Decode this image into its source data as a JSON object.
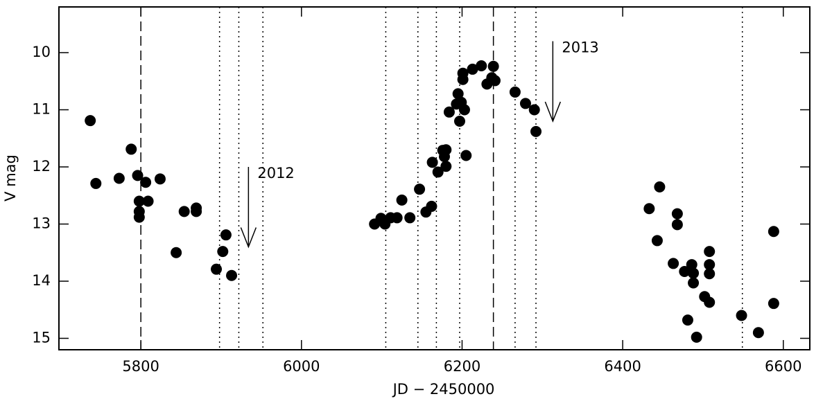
{
  "chart_data": {
    "type": "scatter",
    "xlabel": "JD − 2450000",
    "ylabel": "V mag",
    "xlim": [
      5698,
      6633
    ],
    "ylim": [
      9.2,
      15.2
    ],
    "invert_y": true,
    "xticks": [
      5800,
      6000,
      6200,
      6400,
      6600
    ],
    "yticks": [
      10,
      11,
      12,
      13,
      14,
      15
    ],
    "color": "#000000",
    "x": [
      5737,
      5744,
      5773,
      5788,
      5796,
      5798,
      5798,
      5798,
      5806,
      5809,
      5824,
      5844,
      5854,
      5869,
      5869,
      5894,
      5902,
      5906,
      5913,
      6091,
      6099,
      6104,
      6111,
      6125,
      6119,
      6135,
      6147,
      6155,
      6162,
      6163,
      6170,
      6176,
      6180,
      6178,
      6180,
      6184,
      6193,
      6195,
      6199,
      6197,
      6203,
      6205,
      6201,
      6201,
      6213,
      6224,
      6231,
      6239,
      6237,
      6241,
      6266,
      6279,
      6290,
      6292,
      6433,
      6443,
      6446,
      6463,
      6468,
      6468,
      6477,
      6481,
      6486,
      6488,
      6488,
      6492,
      6502,
      6508,
      6508,
      6508,
      6508,
      6548,
      6569,
      6588,
      6588
    ],
    "y": [
      11.19,
      12.29,
      12.2,
      11.69,
      12.15,
      12.6,
      12.78,
      12.88,
      12.27,
      12.6,
      12.21,
      13.5,
      12.78,
      12.78,
      12.72,
      13.79,
      13.48,
      13.19,
      13.9,
      13.0,
      12.9,
      13.0,
      12.89,
      12.58,
      12.89,
      12.89,
      12.39,
      12.79,
      12.69,
      11.92,
      12.09,
      11.71,
      11.7,
      11.82,
      11.99,
      11.04,
      10.9,
      10.72,
      10.87,
      11.2,
      11.0,
      11.8,
      10.47,
      10.36,
      10.29,
      10.23,
      10.55,
      10.24,
      10.44,
      10.49,
      10.69,
      10.89,
      11.0,
      11.38,
      12.73,
      13.29,
      12.35,
      13.69,
      12.82,
      13.01,
      13.83,
      14.68,
      13.71,
      13.86,
      14.03,
      14.98,
      14.27,
      14.37,
      13.48,
      13.71,
      13.87,
      14.6,
      14.9,
      13.13,
      14.39
    ],
    "vlines": [
      {
        "x": 5800,
        "style": "dashed"
      },
      {
        "x": 6239,
        "style": "dashed"
      },
      {
        "x": 5898,
        "style": "dotted"
      },
      {
        "x": 5922,
        "style": "dotted"
      },
      {
        "x": 5952,
        "style": "dotted"
      },
      {
        "x": 6105,
        "style": "dotted"
      },
      {
        "x": 6145,
        "style": "dotted"
      },
      {
        "x": 6168,
        "style": "dotted"
      },
      {
        "x": 6197,
        "style": "dotted"
      },
      {
        "x": 6266,
        "style": "dotted"
      },
      {
        "x": 6292,
        "style": "dotted"
      },
      {
        "x": 6549,
        "style": "dotted"
      }
    ],
    "annotations": [
      {
        "text": "2012",
        "x": 5934,
        "y_start": 12.0,
        "y_end": 13.4
      },
      {
        "text": "2013",
        "x": 6313,
        "y_start": 9.8,
        "y_end": 11.2
      }
    ]
  }
}
